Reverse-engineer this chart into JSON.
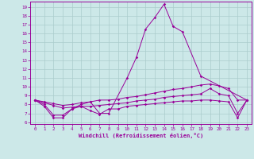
{
  "line_color": "#990099",
  "bg_color": "#cce8e8",
  "grid_color": "#aacccc",
  "xlabel": "Windchill (Refroidissement éolien,°C)",
  "yticks": [
    6,
    7,
    8,
    9,
    10,
    11,
    12,
    13,
    14,
    15,
    16,
    17,
    18,
    19
  ],
  "xticks": [
    0,
    1,
    2,
    3,
    4,
    5,
    6,
    7,
    8,
    9,
    10,
    11,
    12,
    13,
    14,
    15,
    16,
    17,
    18,
    19,
    20,
    21,
    22,
    23
  ],
  "ylim": [
    5.8,
    19.6
  ],
  "xlim": [
    -0.5,
    23.5
  ],
  "curves": {
    "c1_x": [
      0,
      1,
      2,
      3,
      4,
      5,
      6,
      7,
      8,
      10,
      11,
      12,
      13,
      14,
      15,
      16,
      18,
      23
    ],
    "c1_y": [
      8.5,
      7.8,
      6.5,
      6.5,
      7.5,
      8.0,
      8.3,
      7.0,
      7.0,
      11.0,
      13.3,
      16.5,
      17.8,
      19.3,
      16.8,
      16.2,
      11.2,
      8.5
    ],
    "c2_x": [
      0,
      1,
      2,
      3,
      4,
      5,
      6,
      7,
      8,
      9,
      10,
      11,
      12,
      13,
      14,
      15,
      16,
      17,
      18,
      19,
      20,
      21,
      22,
      23
    ],
    "c2_y": [
      8.5,
      8.3,
      8.1,
      7.9,
      8.0,
      8.2,
      8.3,
      8.5,
      8.5,
      8.6,
      8.8,
      8.9,
      9.1,
      9.3,
      9.5,
      9.7,
      9.8,
      10.0,
      10.2,
      10.3,
      10.1,
      9.8,
      8.5,
      8.5
    ],
    "c3_x": [
      0,
      1,
      2,
      3,
      4,
      5,
      6,
      7,
      8,
      9,
      10,
      11,
      12,
      13,
      14,
      15,
      16,
      17,
      18,
      19,
      20,
      21,
      22,
      23
    ],
    "c3_y": [
      8.5,
      8.2,
      7.9,
      7.6,
      7.7,
      7.8,
      7.8,
      7.9,
      8.0,
      8.1,
      8.2,
      8.4,
      8.5,
      8.6,
      8.8,
      8.9,
      9.0,
      9.1,
      9.2,
      9.8,
      9.2,
      9.0,
      7.0,
      8.5
    ],
    "c4_x": [
      0,
      1,
      2,
      3,
      4,
      5,
      6,
      7,
      8,
      9,
      10,
      11,
      12,
      13,
      14,
      15,
      16,
      17,
      18,
      19,
      20,
      21,
      22,
      23
    ],
    "c4_y": [
      8.5,
      8.0,
      6.8,
      6.8,
      7.5,
      7.8,
      7.3,
      6.9,
      7.5,
      7.5,
      7.8,
      7.9,
      8.0,
      8.1,
      8.2,
      8.3,
      8.4,
      8.4,
      8.5,
      8.5,
      8.4,
      8.3,
      6.5,
      8.5
    ]
  }
}
